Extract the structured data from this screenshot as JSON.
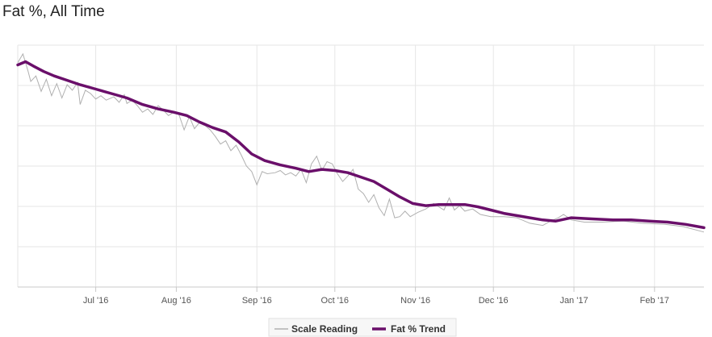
{
  "page": {
    "title": "Fat %, All Time"
  },
  "chart_data": {
    "type": "line",
    "title": "Fat %, All Time",
    "xlabel": "",
    "ylabel": "",
    "x_axis": {
      "type": "date",
      "range": [
        "2016-06-01",
        "2017-02-20"
      ],
      "tick_labels": [
        "Jul '16",
        "Aug '16",
        "Sep '16",
        "Oct '16",
        "Nov '16",
        "Dec '16",
        "Jan '17",
        "Feb '17"
      ],
      "tick_dates": [
        "2016-07-01",
        "2016-08-01",
        "2016-09-01",
        "2016-10-01",
        "2016-11-01",
        "2016-12-01",
        "2017-01-01",
        "2017-02-01"
      ]
    },
    "y_axis": {
      "tick_labels_shown": false,
      "gridlines": 6
    },
    "grid": true,
    "legend_position": "bottom-center",
    "colors": {
      "scale": "#b0b0b0",
      "trend": "#6a0f6a",
      "grid": "#e6e6e6",
      "axis": "#c8c8c8"
    },
    "series": [
      {
        "name": "Scale Reading",
        "values": [
          [
            "2016-06-01",
            35.4
          ],
          [
            "2016-06-03",
            36.2
          ],
          [
            "2016-06-05",
            34.6
          ],
          [
            "2016-06-06",
            33.7
          ],
          [
            "2016-06-08",
            34.2
          ],
          [
            "2016-06-10",
            32.8
          ],
          [
            "2016-06-12",
            33.9
          ],
          [
            "2016-06-14",
            32.4
          ],
          [
            "2016-06-16",
            33.5
          ],
          [
            "2016-06-18",
            32.2
          ],
          [
            "2016-06-20",
            33.4
          ],
          [
            "2016-06-22",
            32.9
          ],
          [
            "2016-06-24",
            33.6
          ],
          [
            "2016-06-25",
            31.6
          ],
          [
            "2016-06-27",
            32.9
          ],
          [
            "2016-06-29",
            32.6
          ],
          [
            "2016-07-01",
            32.1
          ],
          [
            "2016-07-03",
            32.4
          ],
          [
            "2016-07-05",
            32.0
          ],
          [
            "2016-07-08",
            32.3
          ],
          [
            "2016-07-10",
            31.8
          ],
          [
            "2016-07-12",
            32.5
          ],
          [
            "2016-07-13",
            31.7
          ],
          [
            "2016-07-15",
            32.0
          ],
          [
            "2016-07-17",
            31.5
          ],
          [
            "2016-07-19",
            30.9
          ],
          [
            "2016-07-21",
            31.2
          ],
          [
            "2016-07-23",
            30.7
          ],
          [
            "2016-07-25",
            31.5
          ],
          [
            "2016-07-27",
            31.1
          ],
          [
            "2016-07-29",
            30.6
          ],
          [
            "2016-07-31",
            30.9
          ],
          [
            "2016-08-02",
            30.7
          ],
          [
            "2016-08-04",
            29.3
          ],
          [
            "2016-08-06",
            30.5
          ],
          [
            "2016-08-08",
            29.4
          ],
          [
            "2016-08-10",
            30.0
          ],
          [
            "2016-08-12",
            29.7
          ],
          [
            "2016-08-14",
            29.3
          ],
          [
            "2016-08-16",
            28.7
          ],
          [
            "2016-08-18",
            28.0
          ],
          [
            "2016-08-20",
            28.3
          ],
          [
            "2016-08-22",
            27.4
          ],
          [
            "2016-08-24",
            27.9
          ],
          [
            "2016-08-26",
            27.0
          ],
          [
            "2016-08-28",
            26.0
          ],
          [
            "2016-08-30",
            25.5
          ],
          [
            "2016-09-01",
            24.3
          ],
          [
            "2016-09-03",
            25.5
          ],
          [
            "2016-09-05",
            25.3
          ],
          [
            "2016-09-08",
            25.4
          ],
          [
            "2016-09-10",
            25.6
          ],
          [
            "2016-09-12",
            25.2
          ],
          [
            "2016-09-14",
            25.4
          ],
          [
            "2016-09-16",
            25.1
          ],
          [
            "2016-09-18",
            25.7
          ],
          [
            "2016-09-20",
            24.5
          ],
          [
            "2016-09-22",
            26.2
          ],
          [
            "2016-09-24",
            26.9
          ],
          [
            "2016-09-26",
            25.6
          ],
          [
            "2016-09-28",
            26.4
          ],
          [
            "2016-09-30",
            26.2
          ],
          [
            "2016-10-02",
            25.3
          ],
          [
            "2016-10-04",
            24.6
          ],
          [
            "2016-10-06",
            25.1
          ],
          [
            "2016-10-08",
            25.7
          ],
          [
            "2016-10-10",
            23.9
          ],
          [
            "2016-10-12",
            23.5
          ],
          [
            "2016-10-14",
            22.7
          ],
          [
            "2016-10-16",
            23.4
          ],
          [
            "2016-10-18",
            22.2
          ],
          [
            "2016-10-20",
            21.5
          ],
          [
            "2016-10-22",
            23.0
          ],
          [
            "2016-10-24",
            21.3
          ],
          [
            "2016-10-26",
            21.4
          ],
          [
            "2016-10-28",
            21.9
          ],
          [
            "2016-10-30",
            21.4
          ],
          [
            "2016-11-02",
            21.8
          ],
          [
            "2016-11-05",
            22.1
          ],
          [
            "2016-11-08",
            22.6
          ],
          [
            "2016-11-10",
            22.3
          ],
          [
            "2016-11-12",
            22.0
          ],
          [
            "2016-11-14",
            23.1
          ],
          [
            "2016-11-16",
            22.0
          ],
          [
            "2016-11-18",
            22.4
          ],
          [
            "2016-11-20",
            21.9
          ],
          [
            "2016-11-23",
            22.1
          ],
          [
            "2016-11-26",
            21.6
          ],
          [
            "2016-11-30",
            21.4
          ],
          [
            "2016-12-05",
            21.4
          ],
          [
            "2016-12-10",
            21.3
          ],
          [
            "2016-12-15",
            20.8
          ],
          [
            "2016-12-20",
            20.6
          ],
          [
            "2016-12-23",
            21.0
          ],
          [
            "2016-12-26",
            21.3
          ],
          [
            "2016-12-28",
            21.6
          ],
          [
            "2016-12-31",
            21.1
          ],
          [
            "2017-01-05",
            20.9
          ],
          [
            "2017-01-12",
            20.9
          ],
          [
            "2017-01-20",
            21.0
          ],
          [
            "2017-01-27",
            20.8
          ],
          [
            "2017-02-05",
            20.7
          ],
          [
            "2017-02-12",
            20.5
          ],
          [
            "2017-02-20",
            20.0
          ]
        ]
      },
      {
        "name": "Fat % Trend",
        "values": [
          [
            "2016-06-01",
            35.2
          ],
          [
            "2016-06-04",
            35.5
          ],
          [
            "2016-06-07",
            35.1
          ],
          [
            "2016-06-11",
            34.6
          ],
          [
            "2016-06-15",
            34.2
          ],
          [
            "2016-06-20",
            33.8
          ],
          [
            "2016-06-25",
            33.4
          ],
          [
            "2016-07-01",
            33.0
          ],
          [
            "2016-07-07",
            32.6
          ],
          [
            "2016-07-13",
            32.2
          ],
          [
            "2016-07-19",
            31.6
          ],
          [
            "2016-07-25",
            31.2
          ],
          [
            "2016-07-31",
            30.9
          ],
          [
            "2016-08-05",
            30.6
          ],
          [
            "2016-08-10",
            30.0
          ],
          [
            "2016-08-15",
            29.5
          ],
          [
            "2016-08-20",
            29.1
          ],
          [
            "2016-08-25",
            28.2
          ],
          [
            "2016-08-30",
            27.1
          ],
          [
            "2016-09-04",
            26.5
          ],
          [
            "2016-09-10",
            26.1
          ],
          [
            "2016-09-16",
            25.8
          ],
          [
            "2016-09-21",
            25.5
          ],
          [
            "2016-09-26",
            25.7
          ],
          [
            "2016-10-01",
            25.6
          ],
          [
            "2016-10-06",
            25.4
          ],
          [
            "2016-10-11",
            25.0
          ],
          [
            "2016-10-16",
            24.6
          ],
          [
            "2016-10-21",
            23.9
          ],
          [
            "2016-10-26",
            23.2
          ],
          [
            "2016-10-31",
            22.6
          ],
          [
            "2016-11-05",
            22.4
          ],
          [
            "2016-11-10",
            22.5
          ],
          [
            "2016-11-15",
            22.5
          ],
          [
            "2016-11-20",
            22.5
          ],
          [
            "2016-11-25",
            22.3
          ],
          [
            "2016-11-30",
            22.0
          ],
          [
            "2016-12-05",
            21.7
          ],
          [
            "2016-12-10",
            21.5
          ],
          [
            "2016-12-15",
            21.3
          ],
          [
            "2016-12-20",
            21.1
          ],
          [
            "2016-12-25",
            21.0
          ],
          [
            "2016-12-31",
            21.3
          ],
          [
            "2017-01-08",
            21.2
          ],
          [
            "2017-01-16",
            21.1
          ],
          [
            "2017-01-23",
            21.1
          ],
          [
            "2017-01-30",
            21.0
          ],
          [
            "2017-02-06",
            20.9
          ],
          [
            "2017-02-13",
            20.7
          ],
          [
            "2017-02-20",
            20.4
          ]
        ]
      }
    ],
    "y_range": [
      15,
      37
    ]
  },
  "legend": {
    "items": [
      {
        "label": "Scale Reading"
      },
      {
        "label": "Fat % Trend"
      }
    ]
  }
}
